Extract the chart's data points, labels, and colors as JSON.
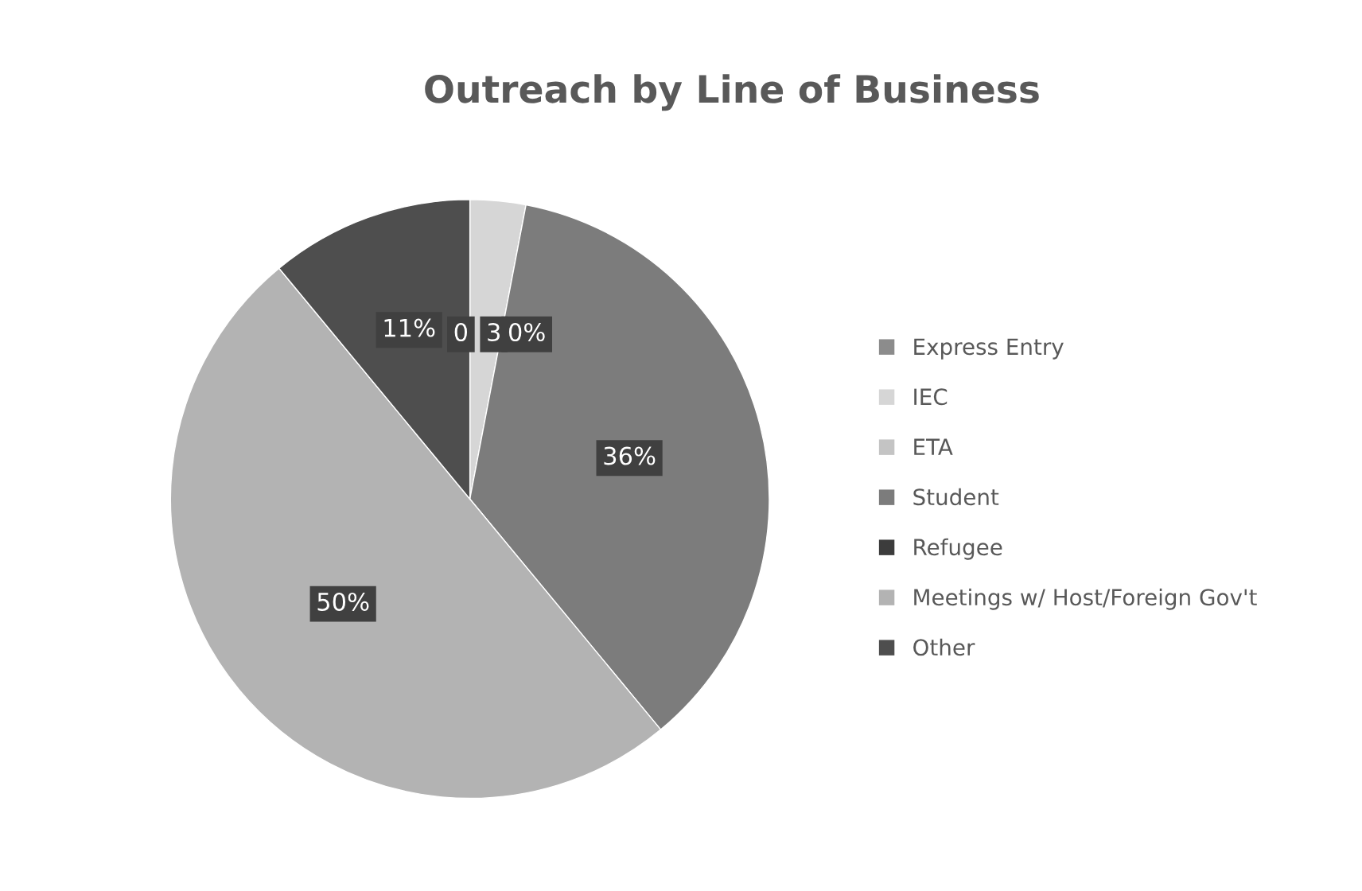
{
  "chart_data": {
    "type": "pie",
    "title": "Outreach by Line of Business",
    "categories": [
      "Express Entry",
      "IEC",
      "ETA",
      "Student",
      "Refugee",
      "Meetings w/ Host/Foreign Gov't",
      "Other"
    ],
    "values": [
      0,
      3,
      0,
      36,
      0,
      50,
      11
    ],
    "colors": [
      "#8c8c8c",
      "#d6d6d6",
      "#c4c4c4",
      "#7c7c7c",
      "#3c3c3c",
      "#b3b3b3",
      "#4e4e4e"
    ],
    "value_labels": [
      "0",
      "3",
      "0%",
      "36%",
      null,
      "50%",
      "11%"
    ],
    "legend": "right"
  }
}
